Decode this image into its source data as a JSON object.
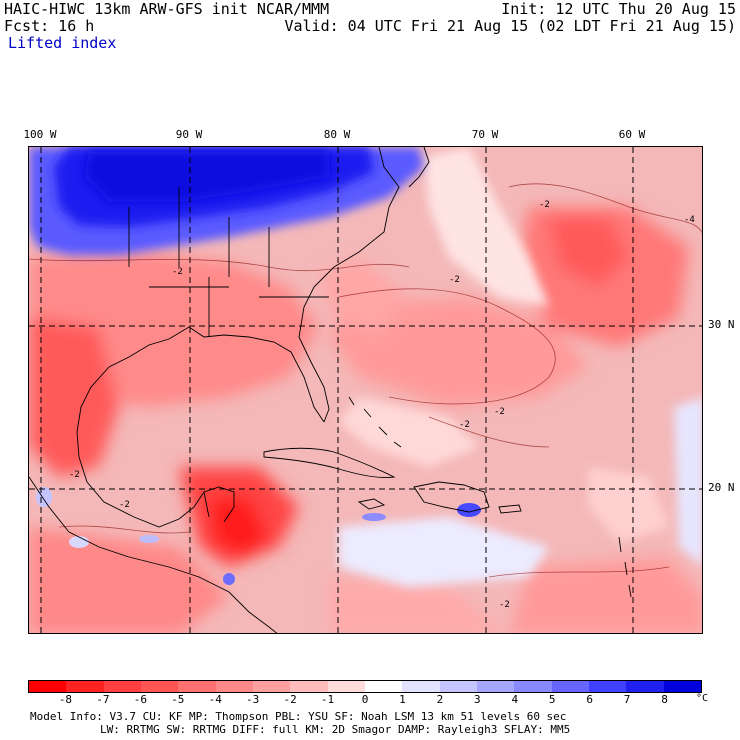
{
  "header": {
    "model_title": "HAIC-HIWC 13km ARW-GFS init   NCAR/MMM",
    "forecast": "Fcst:   16 h",
    "field_name": "Lifted index",
    "init_time": "Init: 12 UTC Thu 20 Aug 15",
    "valid_time": "Valid: 04 UTC Fri 21 Aug 15 (02 LDT Fri 21 Aug 15)"
  },
  "map": {
    "longitude_labels": [
      "100 W",
      "90 W",
      "80 W",
      "70 W",
      "60 W"
    ],
    "latitude_labels": [
      "30 N",
      "20 N"
    ],
    "contour_labels": [
      "-2",
      "-2",
      "-2",
      "-4",
      "-2",
      "-2",
      "-2",
      "-2",
      "-2"
    ]
  },
  "colorbar": {
    "unit": "°C",
    "tick_labels": [
      "-8",
      "-7",
      "-6",
      "-5",
      "-4",
      "-3",
      "-2",
      "-1",
      "0",
      "1",
      "2",
      "3",
      "4",
      "5",
      "6",
      "7",
      "8"
    ],
    "colors": [
      "#ff0000",
      "#ff2222",
      "#ff4040",
      "#ff5555",
      "#ff7070",
      "#ff8888",
      "#ffa0a0",
      "#ffbcbc",
      "#ffdcdc",
      "#ffffff",
      "#e2e2ff",
      "#c4c4ff",
      "#a6a6ff",
      "#8888ff",
      "#6666ff",
      "#4040ff",
      "#2020f0",
      "#0000dc"
    ]
  },
  "footer": {
    "model_info_line1": "Model Info: V3.7     CU: KF       MP: Thompson     PBL: YSU       SF: Noah LSM    13 km    51 levels   60 sec",
    "model_info_line2": "LW: RRTMG    SW: RRTMG  DIFF: full    KM: 2D Smagor DAMP: Rayleigh3  SFLAY: MM5"
  }
}
